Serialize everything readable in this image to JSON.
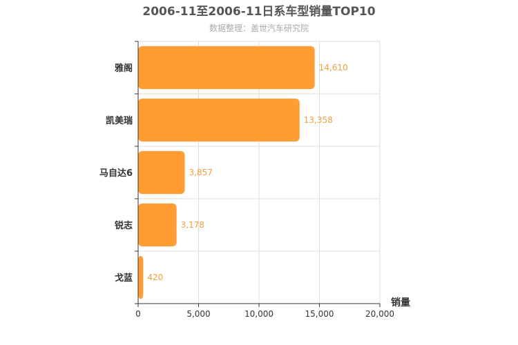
{
  "chart_data": {
    "type": "bar",
    "orientation": "horizontal",
    "title": "2006-11至2006-11日系车型销量TOP10",
    "subtitle": "数据整理：盖世汽车研究院",
    "categories": [
      "雅阁",
      "凯美瑞",
      "马自达6",
      "锐志",
      "戈蓝"
    ],
    "values": [
      14610,
      13358,
      3857,
      3178,
      420
    ],
    "value_labels": [
      "14,610",
      "13,358",
      "3,857",
      "3,178",
      "420"
    ],
    "xlabel": "销量",
    "ylabel": "",
    "xlim": [
      0,
      20000
    ],
    "x_ticks": [
      0,
      5000,
      10000,
      15000,
      20000
    ],
    "x_tick_labels": [
      "0",
      "5,000",
      "10,000",
      "15,000",
      "20,000"
    ],
    "grid": true,
    "colors": {
      "bar": "#ff9c33",
      "data_label": "#f0a040",
      "grid": "#dddddd",
      "axis": "#333333"
    }
  }
}
